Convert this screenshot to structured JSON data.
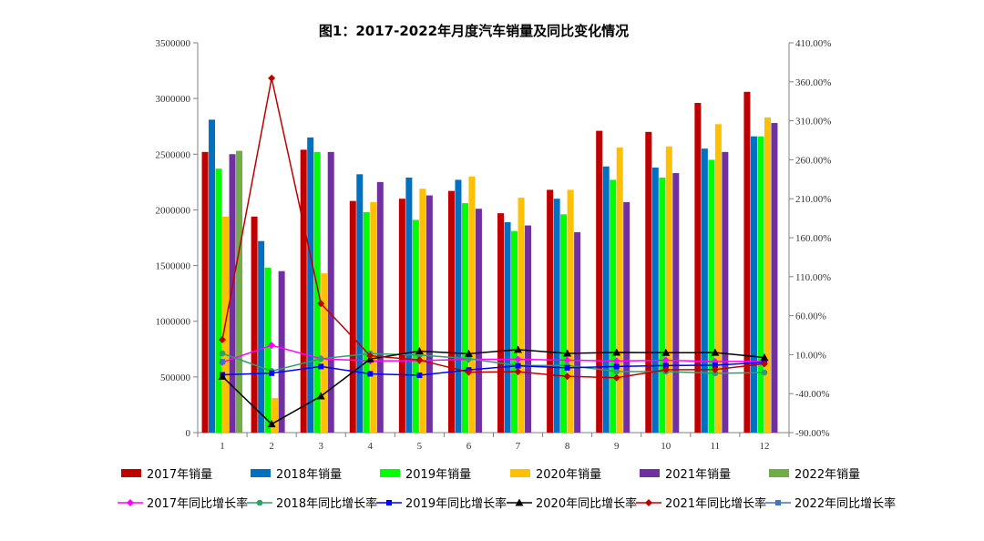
{
  "chart_data": {
    "type": "bar",
    "title": "图1：2017-2022年月度汽车销量及同比变化情况",
    "categories": [
      "1",
      "2",
      "3",
      "4",
      "5",
      "6",
      "7",
      "8",
      "9",
      "10",
      "11",
      "12"
    ],
    "y_left": {
      "ylim": [
        0,
        3500000
      ],
      "ticks": [
        "0",
        "500000",
        "1000000",
        "1500000",
        "2000000",
        "2500000",
        "3000000",
        "3500000"
      ]
    },
    "y_right": {
      "ylim": [
        -90,
        410
      ],
      "ticks": [
        "-90.00%",
        "-40.00%",
        "10.00%",
        "60.00%",
        "110.00%",
        "160.00%",
        "210.00%",
        "260.00%",
        "310.00%",
        "360.00%",
        "410.00%"
      ]
    },
    "bar_series": [
      {
        "name": "2017年销量",
        "color": "#C00000",
        "values": [
          2520000,
          1940000,
          2540000,
          2080000,
          2100000,
          2170000,
          1970000,
          2180000,
          2710000,
          2700000,
          2960000,
          3060000
        ]
      },
      {
        "name": "2018年销量",
        "color": "#0070C0",
        "values": [
          2810000,
          1720000,
          2650000,
          2320000,
          2290000,
          2270000,
          1890000,
          2100000,
          2390000,
          2380000,
          2550000,
          2660000
        ]
      },
      {
        "name": "2019年销量",
        "color": "#00FF00",
        "values": [
          2370000,
          1480000,
          2520000,
          1980000,
          1910000,
          2060000,
          1810000,
          1960000,
          2270000,
          2290000,
          2450000,
          2660000
        ]
      },
      {
        "name": "2020年销量",
        "color": "#FFC000",
        "values": [
          1940000,
          310000,
          1430000,
          2070000,
          2190000,
          2300000,
          2110000,
          2180000,
          2560000,
          2570000,
          2770000,
          2830000
        ]
      },
      {
        "name": "2021年销量",
        "color": "#7030A0",
        "values": [
          2500000,
          1450000,
          2520000,
          2250000,
          2130000,
          2010000,
          1860000,
          1800000,
          2070000,
          2330000,
          2520000,
          2780000
        ]
      },
      {
        "name": "2022年销量",
        "color": "#70AD47",
        "values": [
          2530000,
          null,
          null,
          null,
          null,
          null,
          null,
          null,
          null,
          null,
          null,
          null
        ]
      }
    ],
    "line_series": [
      {
        "name": "2017年同比增长率",
        "color": "#FF00FF",
        "marker": "diamond",
        "values": [
          0.2,
          22.0,
          4.7,
          2.0,
          2.3,
          4.0,
          4.0,
          2.9,
          1.9,
          2.9,
          1.1,
          1.6
        ]
      },
      {
        "name": "2018年同比增长率",
        "color": "#2E9E6E",
        "marker": "circle",
        "values": [
          11.6,
          -11.1,
          4.7,
          11.4,
          9.6,
          4.8,
          -4.0,
          -3.8,
          -11.6,
          -11.7,
          -13.9,
          -13.0
        ]
      },
      {
        "name": "2019年同比增长率",
        "color": "#0000FF",
        "marker": "square",
        "values": [
          -15.8,
          -13.8,
          -5.2,
          -14.6,
          -16.4,
          -9.6,
          -4.3,
          -6.9,
          -5.2,
          -4.0,
          -3.6,
          0.1
        ]
      },
      {
        "name": "2020年同比增长率",
        "color": "#000000",
        "marker": "triangle",
        "values": [
          -18.0,
          -79.1,
          -43.3,
          4.4,
          14.5,
          11.2,
          16.4,
          11.6,
          12.8,
          12.5,
          12.6,
          6.4
        ]
      },
      {
        "name": "2021年同比增长率",
        "color": "#C00000",
        "marker": "diamond",
        "values": [
          29.1,
          364.6,
          75.6,
          8.6,
          3.1,
          -12.4,
          -11.9,
          -17.8,
          -19.6,
          -9.4,
          -9.1,
          -1.6
        ]
      },
      {
        "name": "2022年同比增长率",
        "color": "#4472C4",
        "marker": "square",
        "values": [
          0.9,
          null,
          null,
          null,
          null,
          null,
          null,
          null,
          null,
          null,
          null,
          null
        ]
      }
    ],
    "legend_position": "bottom",
    "grid": false
  }
}
